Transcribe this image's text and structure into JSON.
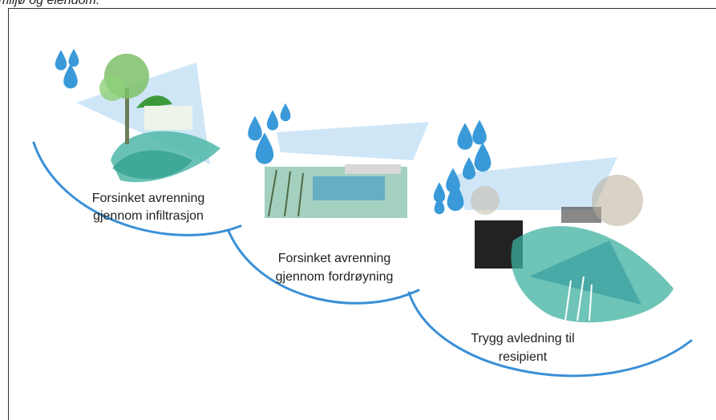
{
  "caption": "miljø og eiendom.",
  "stages": [
    {
      "lines": [
        "Forsinket avrenning",
        "gjennom infiltrasjon"
      ]
    },
    {
      "lines": [
        "Forsinket avrenning",
        "gjennom fordrøyning"
      ]
    },
    {
      "lines": [
        "Trygg avledning til",
        "resipient"
      ]
    }
  ]
}
